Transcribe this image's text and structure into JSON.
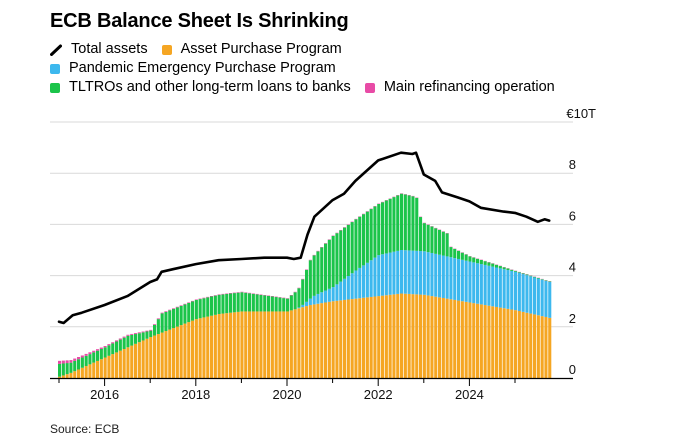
{
  "title": "ECB Balance Sheet Is Shrinking",
  "source": "Source: ECB",
  "colors": {
    "total": "#000000",
    "app": "#F5A623",
    "pepp": "#3DB8EE",
    "tltro": "#1BC44A",
    "mro": "#E84BA6",
    "grid": "#d9d9d9"
  },
  "legend": [
    {
      "label": "Total assets",
      "key": "total",
      "icon": "line-icon"
    },
    {
      "label": "Asset Purchase Program",
      "key": "app",
      "icon": "square-icon"
    },
    {
      "label": "Pandemic Emergency Purchase Program",
      "key": "pepp",
      "icon": "square-icon"
    },
    {
      "label": "TLTROs and other long-term loans to banks",
      "key": "tltro",
      "icon": "square-icon"
    },
    {
      "label": "Main refinancing operation",
      "key": "mro",
      "icon": "square-icon"
    }
  ],
  "chart_data": {
    "type": "bar",
    "stacked": true,
    "title": "ECB Balance Sheet Is Shrinking",
    "xlabel": "",
    "ylabel": "",
    "unit_label": "€10T",
    "ylim": [
      0,
      10
    ],
    "yticks": [
      0,
      2,
      4,
      6,
      8,
      10
    ],
    "ytick_labels": [
      "0",
      "2",
      "4",
      "6",
      "8",
      "€10T"
    ],
    "xlim": [
      2015.0,
      2025.9
    ],
    "xticks": [
      2015,
      2016,
      2017,
      2018,
      2019,
      2020,
      2021,
      2022,
      2023,
      2024,
      2025
    ],
    "xtick_labels": {
      "2016": "2016",
      "2018": "2018",
      "2020": "2020",
      "2022": "2022",
      "2024": "2024"
    },
    "grid": true,
    "legend_position": "top-left",
    "bar_frequency": "monthly",
    "bars_start": 2015.0,
    "bars_end": 2025.75,
    "series": [
      {
        "name": "Asset Purchase Program",
        "key": "app",
        "kind": "stacked-bar",
        "points": [
          [
            2015.0,
            0.05
          ],
          [
            2015.25,
            0.2
          ],
          [
            2016.0,
            0.8
          ],
          [
            2017.0,
            1.6
          ],
          [
            2018.0,
            2.3
          ],
          [
            2018.5,
            2.5
          ],
          [
            2019.0,
            2.6
          ],
          [
            2020.0,
            2.6
          ],
          [
            2020.5,
            2.85
          ],
          [
            2021.0,
            3.0
          ],
          [
            2022.0,
            3.2
          ],
          [
            2022.5,
            3.3
          ],
          [
            2023.0,
            3.25
          ],
          [
            2024.0,
            2.95
          ],
          [
            2025.0,
            2.65
          ],
          [
            2025.75,
            2.35
          ]
        ]
      },
      {
        "name": "Pandemic Emergency Purchase Program",
        "key": "pepp",
        "kind": "stacked-bar",
        "points": [
          [
            2015.0,
            0
          ],
          [
            2020.2,
            0
          ],
          [
            2020.35,
            0.1
          ],
          [
            2020.6,
            0.35
          ],
          [
            2021.0,
            0.55
          ],
          [
            2021.5,
            1.1
          ],
          [
            2022.0,
            1.6
          ],
          [
            2022.5,
            1.7
          ],
          [
            2023.0,
            1.7
          ],
          [
            2024.0,
            1.6
          ],
          [
            2025.0,
            1.5
          ],
          [
            2025.75,
            1.4
          ]
        ]
      },
      {
        "name": "TLTROs and other long-term loans to banks",
        "key": "tltro",
        "kind": "stacked-bar",
        "points": [
          [
            2015.0,
            0.5
          ],
          [
            2015.25,
            0.4
          ],
          [
            2016.0,
            0.4
          ],
          [
            2016.5,
            0.45
          ],
          [
            2017.0,
            0.25
          ],
          [
            2017.25,
            0.75
          ],
          [
            2018.0,
            0.75
          ],
          [
            2019.0,
            0.75
          ],
          [
            2020.0,
            0.5
          ],
          [
            2020.25,
            0.75
          ],
          [
            2020.5,
            1.5
          ],
          [
            2021.0,
            2.0
          ],
          [
            2022.0,
            2.0
          ],
          [
            2022.5,
            2.2
          ],
          [
            2022.83,
            2.1
          ],
          [
            2022.92,
            1.3
          ],
          [
            2023.0,
            1.1
          ],
          [
            2023.5,
            0.9
          ],
          [
            2023.58,
            0.4
          ],
          [
            2024.0,
            0.2
          ],
          [
            2024.5,
            0.12
          ],
          [
            2025.0,
            0.03
          ],
          [
            2025.75,
            0.02
          ]
        ]
      },
      {
        "name": "Main refinancing operation",
        "key": "mro",
        "kind": "stacked-bar",
        "points": [
          [
            2015.0,
            0.12
          ],
          [
            2015.5,
            0.08
          ],
          [
            2016.0,
            0.05
          ],
          [
            2017.0,
            0.03
          ],
          [
            2018.0,
            0.02
          ],
          [
            2025.75,
            0.01
          ]
        ]
      },
      {
        "name": "Total assets",
        "key": "total",
        "kind": "line",
        "points": [
          [
            2015.0,
            2.2
          ],
          [
            2015.1,
            2.15
          ],
          [
            2015.3,
            2.45
          ],
          [
            2015.5,
            2.55
          ],
          [
            2016.0,
            2.85
          ],
          [
            2016.5,
            3.2
          ],
          [
            2017.0,
            3.75
          ],
          [
            2017.15,
            3.85
          ],
          [
            2017.25,
            4.15
          ],
          [
            2017.5,
            4.25
          ],
          [
            2018.0,
            4.45
          ],
          [
            2018.5,
            4.6
          ],
          [
            2019.0,
            4.65
          ],
          [
            2019.5,
            4.7
          ],
          [
            2020.0,
            4.7
          ],
          [
            2020.15,
            4.65
          ],
          [
            2020.3,
            4.7
          ],
          [
            2020.45,
            5.6
          ],
          [
            2020.6,
            6.3
          ],
          [
            2021.0,
            6.95
          ],
          [
            2021.25,
            7.2
          ],
          [
            2021.5,
            7.7
          ],
          [
            2022.0,
            8.5
          ],
          [
            2022.5,
            8.8
          ],
          [
            2022.75,
            8.75
          ],
          [
            2022.83,
            8.8
          ],
          [
            2023.0,
            7.95
          ],
          [
            2023.25,
            7.7
          ],
          [
            2023.4,
            7.25
          ],
          [
            2023.75,
            7.05
          ],
          [
            2024.0,
            6.9
          ],
          [
            2024.25,
            6.65
          ],
          [
            2024.75,
            6.5
          ],
          [
            2025.0,
            6.45
          ],
          [
            2025.25,
            6.3
          ],
          [
            2025.5,
            6.1
          ],
          [
            2025.65,
            6.2
          ],
          [
            2025.75,
            6.15
          ]
        ]
      }
    ]
  }
}
